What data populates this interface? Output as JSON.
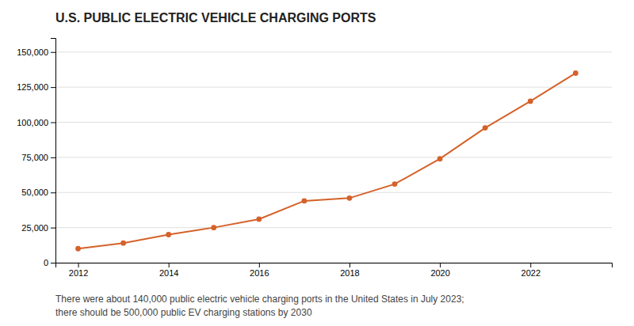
{
  "chart_data": {
    "type": "line",
    "title": "U.S. PUBLIC ELECTRIC VEHICLE CHARGING PORTS",
    "annotations": [
      "There were about 140,000 public electric vehicle charging ports in the United States in July 2023;",
      "there should be 500,000 public EV charging stations by 2030"
    ],
    "x": [
      2012,
      2013,
      2014,
      2015,
      2016,
      2017,
      2018,
      2019,
      2020,
      2021,
      2022,
      2023
    ],
    "values": [
      10000,
      14000,
      20000,
      25000,
      31000,
      44000,
      46000,
      56000,
      74000,
      96000,
      115000,
      135000
    ],
    "color": "#d4622a",
    "marker": "circle",
    "xlim": [
      2011.5,
      2023.8
    ],
    "xticks": [
      2012,
      2014,
      2016,
      2018,
      2020,
      2022
    ],
    "ylim": [
      0,
      160000
    ],
    "yticks": [
      0,
      {
        "value": 25000,
        "label": "25,000"
      },
      {
        "value": 50000,
        "label": "50,000"
      },
      {
        "value": 75000,
        "label": "75,000"
      },
      {
        "value": 100000,
        "label": "100,000"
      },
      {
        "value": 125000,
        "label": "125,000"
      },
      {
        "value": 150000,
        "label": "150,000"
      }
    ],
    "grid": true
  }
}
